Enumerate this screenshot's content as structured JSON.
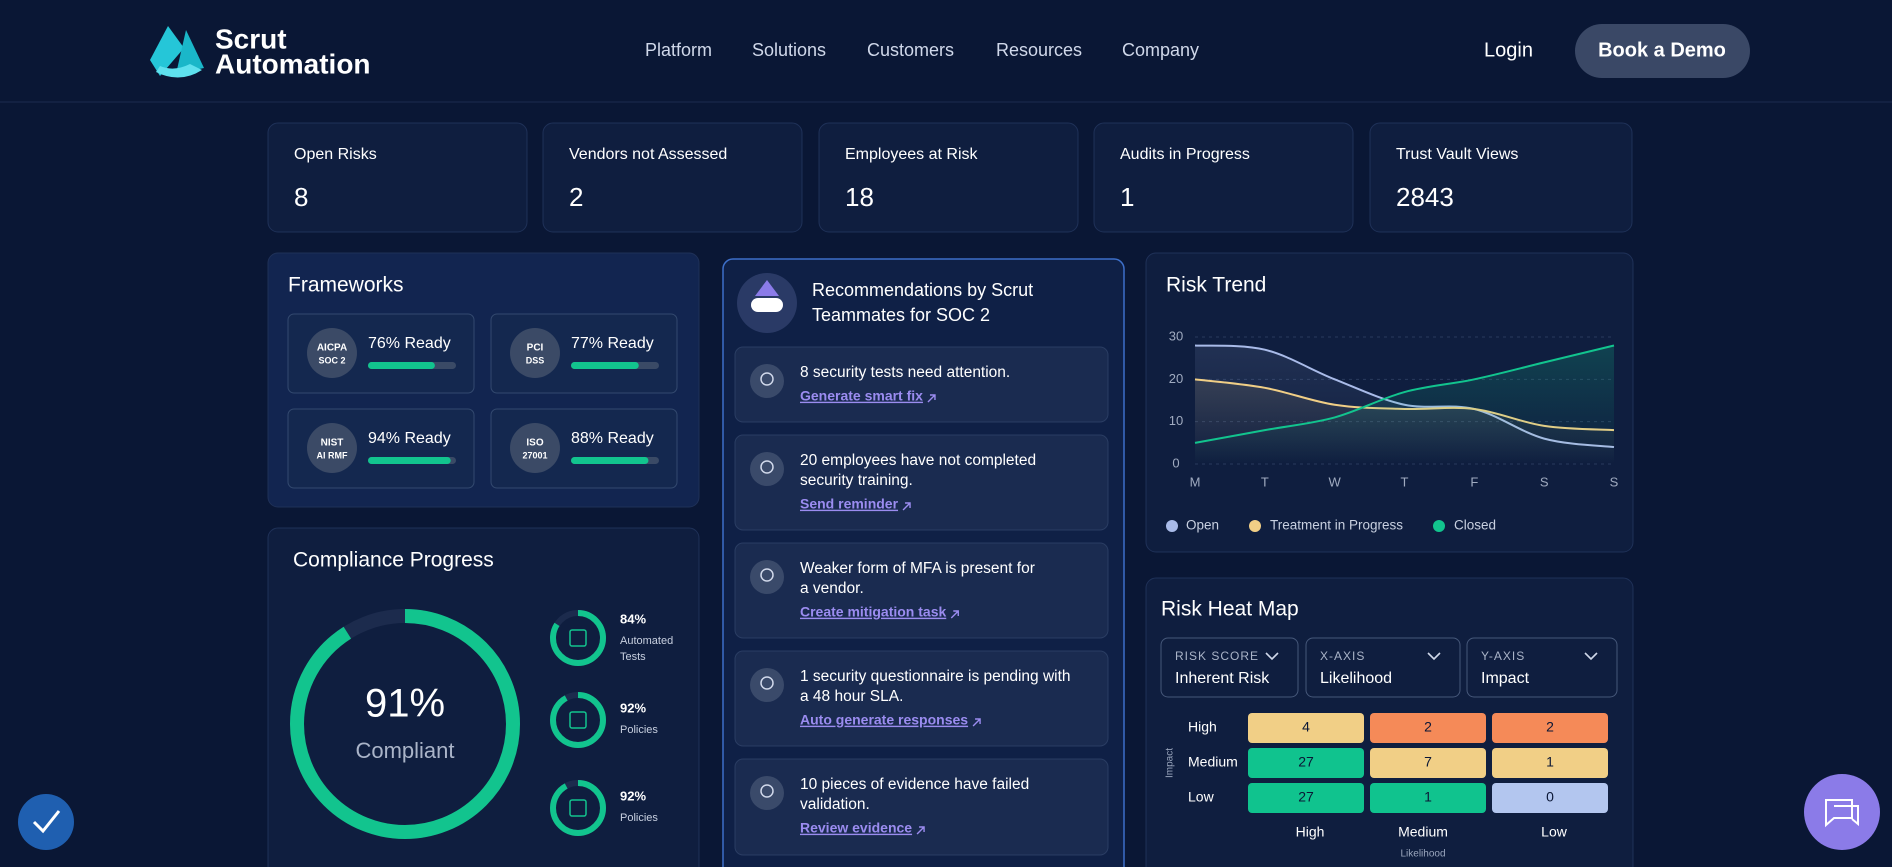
{
  "nav": {
    "logo": [
      "Scrut",
      "Automation"
    ],
    "links": [
      "Platform",
      "Solutions",
      "Customers",
      "Resources",
      "Company"
    ],
    "login": "Login",
    "cta": "Book a Demo"
  },
  "stats": [
    {
      "label": "Open Risks",
      "value": 8
    },
    {
      "label": "Vendors not Assessed",
      "value": 2
    },
    {
      "label": "Employees at Risk",
      "value": 18
    },
    {
      "label": "Audits in Progress",
      "value": 1
    },
    {
      "label": "Trust Vault Views",
      "value": 2843
    }
  ],
  "frameworks": {
    "title": "Frameworks",
    "items": [
      {
        "badge": [
          "AICPA",
          "SOC 2"
        ],
        "value": 76,
        "label": "76% Ready"
      },
      {
        "badge": [
          "PCI",
          "DSS"
        ],
        "value": 77,
        "label": "77% Ready"
      },
      {
        "badge": [
          "NIST",
          "AI RMF"
        ],
        "value": 94,
        "label": "94% Ready"
      },
      {
        "badge": [
          "ISO",
          "27001"
        ],
        "value": 88,
        "label": "88% Ready"
      }
    ]
  },
  "compliance": {
    "title": "Compliance Progress",
    "overall": {
      "value": 91,
      "label": "91%",
      "caption": "Compliant"
    },
    "items": [
      {
        "value": 84,
        "label": "84%",
        "name": [
          "Automated",
          "Tests"
        ]
      },
      {
        "value": 92,
        "label": "92%",
        "name": [
          "Policies"
        ]
      },
      {
        "value": 92,
        "label": "92%",
        "name": [
          "Policies"
        ]
      }
    ]
  },
  "recommendations": {
    "title": [
      "Recommendations by Scrut",
      "Teammates for SOC 2"
    ],
    "items": [
      {
        "text": [
          "8 security tests need attention."
        ],
        "link": "Generate smart fix"
      },
      {
        "text": [
          "20 employees have not completed",
          "security training."
        ],
        "link": "Send reminder"
      },
      {
        "text": [
          "Weaker form of MFA is present for",
          "a vendor."
        ],
        "link": "Create mitigation task"
      },
      {
        "text": [
          "1 security questionnaire is pending with",
          "a 48 hour SLA."
        ],
        "link": "Auto generate responses"
      },
      {
        "text": [
          "10 pieces of evidence have failed",
          "validation."
        ],
        "link": "Review evidence"
      }
    ]
  },
  "risk_trend": {
    "type": "line",
    "title": "Risk Trend",
    "categories": [
      "M",
      "T",
      "W",
      "T",
      "F",
      "S",
      "S"
    ],
    "series": [
      {
        "name": "Open",
        "color": "#a9bbe9",
        "values": [
          28,
          27,
          20,
          14,
          13,
          6,
          4
        ]
      },
      {
        "name": "Treatment in Progress",
        "color": "#f1cf86",
        "values": [
          20,
          18,
          14,
          13,
          13,
          9,
          8
        ]
      },
      {
        "name": "Closed",
        "color": "#12c48e",
        "values": [
          5,
          8,
          11,
          17,
          20,
          24,
          28
        ]
      }
    ],
    "ylim": [
      0,
      30
    ],
    "yticks": [
      0,
      10,
      20,
      30
    ],
    "grid": true
  },
  "heat_map": {
    "title": "Risk Heat Map",
    "filters": [
      {
        "label": "RISK SCORE",
        "value": "Inherent Risk"
      },
      {
        "label": "X-AXIS",
        "value": "Likelihood"
      },
      {
        "label": "Y-AXIS",
        "value": "Impact"
      }
    ],
    "rows": [
      "High",
      "Medium",
      "Low"
    ],
    "columns": [
      "High",
      "Medium",
      "Low"
    ],
    "values": [
      [
        4,
        2,
        2
      ],
      [
        27,
        7,
        1
      ],
      [
        27,
        1,
        0
      ]
    ],
    "colors": [
      [
        "#f1cf86",
        "#f58a58",
        "#f58a58"
      ],
      [
        "#10c38e",
        "#f1cf86",
        "#f1cf86"
      ],
      [
        "#10c38e",
        "#10c38e",
        "#b3c6ef"
      ]
    ],
    "y_label": "Impact",
    "x_label": "Likelihood"
  }
}
